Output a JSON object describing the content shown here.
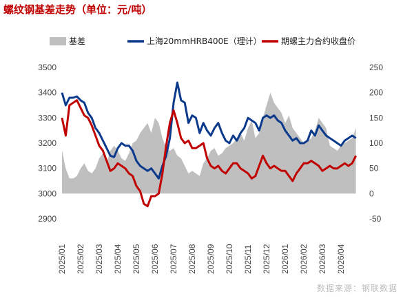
{
  "chart_data": {
    "type": "line",
    "title": "螺纹钢基差走势（单位：元/吨）",
    "source": "数据来源：钢联数据",
    "legend_position": "top",
    "grid": false,
    "x_ticks": [
      "2025/01",
      "2025/02",
      "2025/03",
      "2025/04",
      "2025/05",
      "2025/06",
      "2025/07",
      "2025/08",
      "2025/09",
      "2025/10",
      "2025/11",
      "2025/12",
      "2026/01",
      "2026/02",
      "2026/03",
      "2026/04"
    ],
    "x_range": [
      0,
      16
    ],
    "y_left": {
      "range": [
        2900,
        3500
      ],
      "ticks": [
        2900,
        3000,
        3100,
        3200,
        3300,
        3400,
        3500
      ]
    },
    "y_right": {
      "range": [
        -50,
        250
      ],
      "ticks": [
        -50,
        0,
        50,
        100,
        150,
        200,
        250
      ]
    },
    "series": [
      {
        "name": "基差",
        "kind": "area",
        "axis": "right",
        "color": "#bfbfbf",
        "x": [
          0,
          0.2,
          0.4,
          0.6,
          0.8,
          1,
          1.2,
          1.4,
          1.6,
          1.8,
          2,
          2.2,
          2.4,
          2.6,
          2.8,
          3,
          3.2,
          3.4,
          3.6,
          3.8,
          4,
          4.2,
          4.4,
          4.6,
          4.8,
          5,
          5.2,
          5.4,
          5.6,
          5.8,
          6,
          6.2,
          6.4,
          6.6,
          6.8,
          7,
          7.2,
          7.4,
          7.6,
          7.8,
          8,
          8.2,
          8.4,
          8.6,
          8.8,
          9,
          9.2,
          9.4,
          9.6,
          9.8,
          10,
          10.2,
          10.4,
          10.6,
          10.8,
          11,
          11.2,
          11.4,
          11.6,
          11.8,
          12,
          12.2,
          12.4,
          12.6,
          12.8,
          13,
          13.2,
          13.4,
          13.6,
          13.8,
          14,
          14.2,
          14.4,
          14.6,
          14.8,
          15,
          15.2,
          15.4,
          15.6,
          15.8
        ],
        "values": [
          85,
          50,
          30,
          30,
          35,
          50,
          60,
          45,
          40,
          50,
          70,
          80,
          60,
          85,
          95,
          85,
          70,
          65,
          80,
          100,
          105,
          120,
          130,
          140,
          120,
          150,
          140,
          110,
          90,
          85,
          90,
          75,
          70,
          55,
          40,
          45,
          40,
          35,
          60,
          70,
          85,
          90,
          75,
          80,
          90,
          95,
          100,
          110,
          120,
          105,
          130,
          145,
          110,
          120,
          150,
          175,
          200,
          180,
          170,
          160,
          140,
          155,
          130,
          120,
          110,
          100,
          105,
          110,
          125,
          150,
          140,
          130,
          95,
          90,
          85,
          95,
          100,
          105,
          110,
          130
        ]
      },
      {
        "name": "上海20mmHRB400E（理计）",
        "kind": "line",
        "axis": "left",
        "color": "#0b3a8c",
        "x": [
          0,
          0.2,
          0.4,
          0.6,
          0.8,
          1,
          1.2,
          1.4,
          1.6,
          1.8,
          2,
          2.2,
          2.4,
          2.6,
          2.8,
          3,
          3.2,
          3.4,
          3.6,
          3.8,
          4,
          4.2,
          4.4,
          4.6,
          4.8,
          5,
          5.2,
          5.4,
          5.6,
          5.8,
          6,
          6.2,
          6.4,
          6.6,
          6.8,
          7,
          7.2,
          7.4,
          7.6,
          7.8,
          8,
          8.2,
          8.4,
          8.6,
          8.8,
          9,
          9.2,
          9.4,
          9.6,
          9.8,
          10,
          10.2,
          10.4,
          10.6,
          10.8,
          11,
          11.2,
          11.4,
          11.6,
          11.8,
          12,
          12.2,
          12.4,
          12.6,
          12.8,
          13,
          13.2,
          13.4,
          13.6,
          13.8,
          14,
          14.2,
          14.4,
          14.6,
          14.8,
          15,
          15.2,
          15.4,
          15.6,
          15.8
        ],
        "values": [
          3400,
          3350,
          3380,
          3380,
          3385,
          3370,
          3360,
          3320,
          3300,
          3260,
          3240,
          3210,
          3180,
          3150,
          3145,
          3180,
          3200,
          3190,
          3190,
          3170,
          3130,
          3110,
          3100,
          3090,
          3100,
          3080,
          3060,
          3110,
          3150,
          3220,
          3360,
          3440,
          3370,
          3360,
          3280,
          3310,
          3300,
          3240,
          3280,
          3250,
          3230,
          3260,
          3280,
          3240,
          3210,
          3200,
          3230,
          3210,
          3240,
          3260,
          3300,
          3290,
          3280,
          3250,
          3300,
          3310,
          3300,
          3310,
          3290,
          3280,
          3250,
          3230,
          3210,
          3220,
          3200,
          3200,
          3210,
          3250,
          3230,
          3270,
          3250,
          3230,
          3220,
          3210,
          3200,
          3190,
          3210,
          3220,
          3230,
          3220
        ]
      },
      {
        "name": "期螺主力合约收盘价",
        "kind": "line",
        "axis": "left",
        "color": "#c00000",
        "x": [
          0,
          0.2,
          0.4,
          0.6,
          0.8,
          1,
          1.2,
          1.4,
          1.6,
          1.8,
          2,
          2.2,
          2.4,
          2.6,
          2.8,
          3,
          3.2,
          3.4,
          3.6,
          3.8,
          4,
          4.2,
          4.4,
          4.6,
          4.8,
          5,
          5.2,
          5.4,
          5.6,
          5.8,
          6,
          6.2,
          6.4,
          6.6,
          6.8,
          7,
          7.2,
          7.4,
          7.6,
          7.8,
          8,
          8.2,
          8.4,
          8.6,
          8.8,
          9,
          9.2,
          9.4,
          9.6,
          9.8,
          10,
          10.2,
          10.4,
          10.6,
          10.8,
          11,
          11.2,
          11.4,
          11.6,
          11.8,
          12,
          12.2,
          12.4,
          12.6,
          12.8,
          13,
          13.2,
          13.4,
          13.6,
          13.8,
          14,
          14.2,
          14.4,
          14.6,
          14.8,
          15,
          15.2,
          15.4,
          15.6,
          15.8
        ],
        "values": [
          3300,
          3230,
          3350,
          3360,
          3370,
          3340,
          3310,
          3300,
          3270,
          3230,
          3190,
          3170,
          3130,
          3090,
          3100,
          3120,
          3110,
          3100,
          3080,
          3070,
          3030,
          3010,
          2960,
          2950,
          2990,
          2990,
          3000,
          3080,
          3190,
          3280,
          3330,
          3280,
          3220,
          3200,
          3210,
          3180,
          3180,
          3190,
          3200,
          3140,
          3110,
          3100,
          3110,
          3090,
          3080,
          3100,
          3120,
          3120,
          3100,
          3090,
          3080,
          3060,
          3070,
          3110,
          3150,
          3120,
          3100,
          3110,
          3100,
          3090,
          3090,
          3070,
          3050,
          3080,
          3100,
          3120,
          3120,
          3130,
          3120,
          3110,
          3090,
          3100,
          3110,
          3100,
          3100,
          3110,
          3120,
          3110,
          3120,
          3150
        ]
      }
    ]
  }
}
